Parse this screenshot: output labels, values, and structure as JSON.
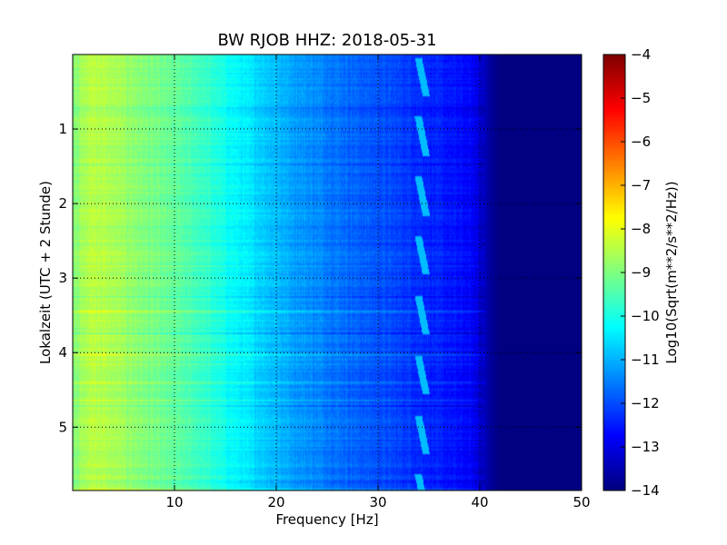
{
  "chart_data": {
    "type": "heatmap",
    "title": "BW RJOB HHZ: 2018-05-31",
    "xlabel": "Frequency [Hz]",
    "ylabel": "Lokalzeit (UTC + 2 Stunde)",
    "xlim": [
      0,
      50
    ],
    "ylim": [
      5.85,
      0
    ],
    "x_ticks": [
      10,
      20,
      30,
      40,
      50
    ],
    "x_tick_labels": [
      "10",
      "20",
      "30",
      "40",
      "50"
    ],
    "y_ticks": [
      1,
      2,
      3,
      4,
      5
    ],
    "y_tick_labels": [
      "1",
      "2",
      "3",
      "4",
      "5"
    ],
    "grid": true,
    "colorscale": "jet",
    "colorbar": {
      "label": "Log10(Sqrt(m**2/s**2/Hz))",
      "range": [
        -14,
        -4
      ],
      "ticks": [
        -4,
        -5,
        -6,
        -7,
        -8,
        -9,
        -10,
        -11,
        -12,
        -13,
        -14
      ],
      "tick_labels": [
        "−4",
        "−5",
        "−6",
        "−7",
        "−8",
        "−9",
        "−10",
        "−11",
        "−12",
        "−13",
        "−14"
      ]
    },
    "spectrum_profile": {
      "frequency_hz": [
        0,
        2,
        5,
        8,
        10,
        13,
        15,
        18,
        20,
        22,
        25,
        28,
        30,
        33,
        35,
        37,
        39,
        40,
        41,
        42,
        50
      ],
      "log_psd": [
        -8.9,
        -8.4,
        -8.7,
        -9.1,
        -9.3,
        -9.7,
        -10.1,
        -10.6,
        -10.9,
        -11.2,
        -11.5,
        -11.8,
        -11.95,
        -12.2,
        -12.4,
        -12.55,
        -12.75,
        -13.1,
        -13.7,
        -14,
        -14
      ]
    },
    "line_feature": {
      "center_frequency_hz": 34.4,
      "period_hours": 0.8,
      "log_psd": -10.9
    }
  }
}
